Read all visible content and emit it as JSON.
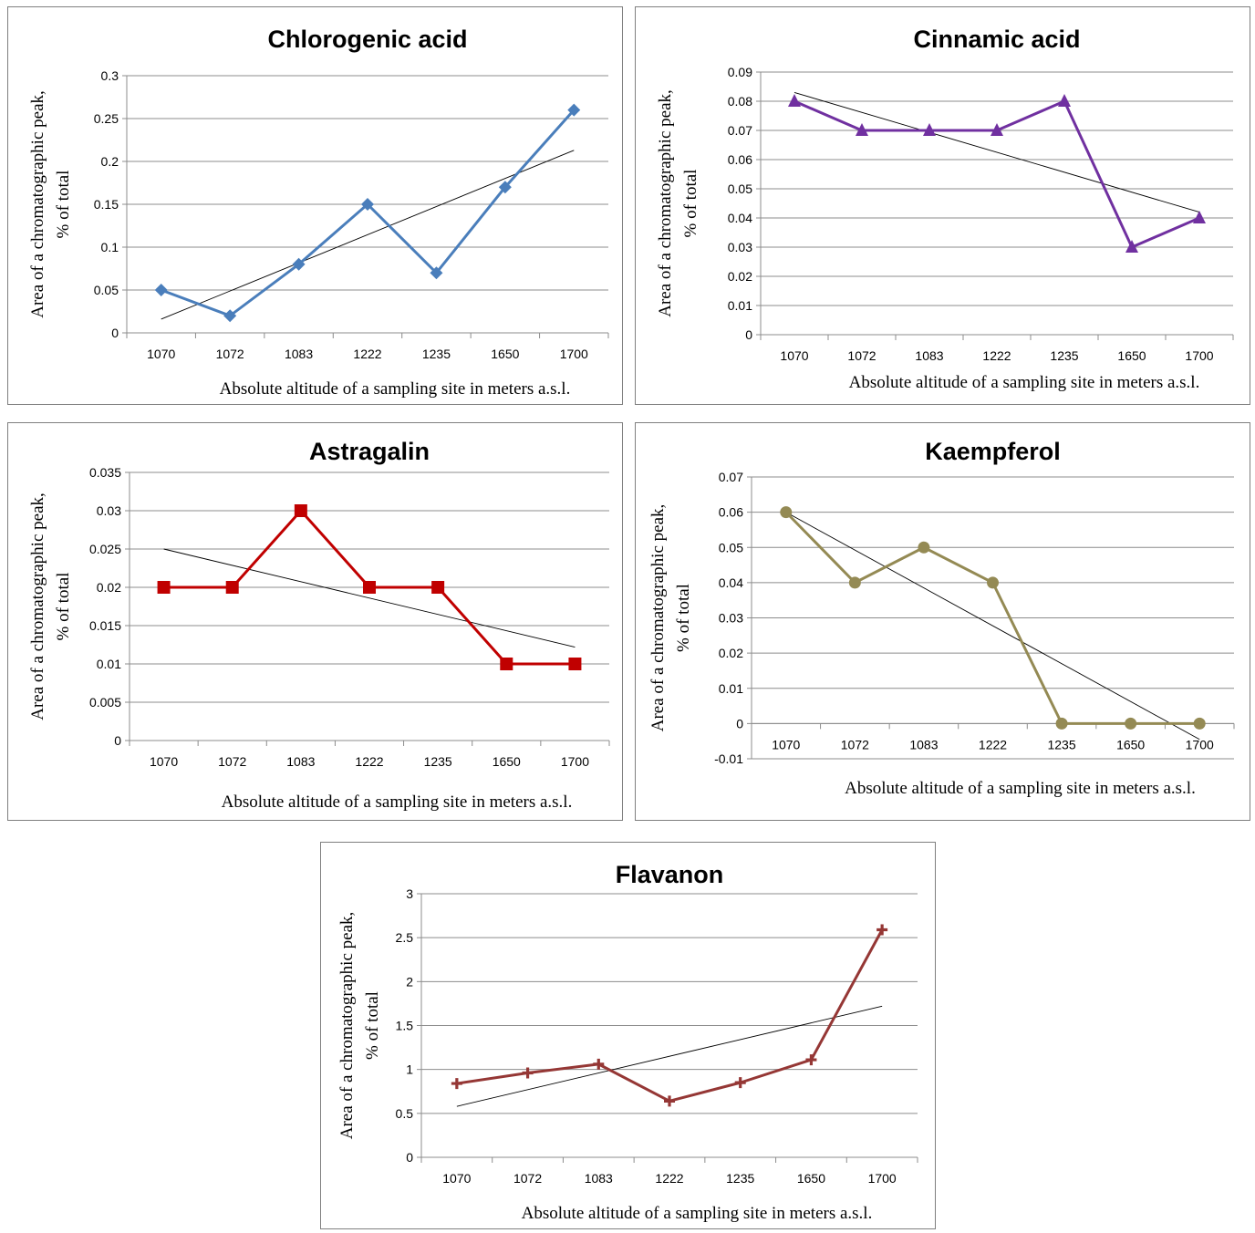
{
  "chart_data": [
    {
      "type": "line",
      "title": "Chlorogenic acid",
      "xlabel": "Absolute altitude of a sampling site in meters a.s.l.",
      "ylabel": [
        "Area of a chromatographic peak,",
        "% of total"
      ],
      "categories": [
        "1070",
        "1072",
        "1083",
        "1222",
        "1235",
        "1650",
        "1700"
      ],
      "series": [
        {
          "values": [
            0.05,
            0.02,
            0.08,
            0.15,
            0.07,
            0.17,
            0.26
          ],
          "color": "#4a7ebb",
          "marker": "diamond"
        }
      ],
      "trendline": [
        0.016,
        0.213
      ],
      "ylim": [
        0,
        0.3
      ],
      "yticks": [
        "0",
        "0.05",
        "0.1",
        "0.15",
        "0.2",
        "0.25",
        "0.3"
      ],
      "grid": true,
      "legend": "none"
    },
    {
      "type": "line",
      "title": "Cinnamic acid",
      "xlabel": "Absolute altitude of a sampling site in meters a.s.l.",
      "ylabel": [
        "Area of a chromatographic peak,",
        "% of total"
      ],
      "categories": [
        "1070",
        "1072",
        "1083",
        "1222",
        "1235",
        "1650",
        "1700"
      ],
      "series": [
        {
          "values": [
            0.08,
            0.07,
            0.07,
            0.07,
            0.08,
            0.03,
            0.04
          ],
          "color": "#7030a0",
          "marker": "triangle"
        }
      ],
      "trendline": [
        0.083,
        0.042
      ],
      "ylim": [
        0,
        0.09
      ],
      "yticks": [
        "0",
        "0.01",
        "0.02",
        "0.03",
        "0.04",
        "0.05",
        "0.06",
        "0.07",
        "0.08",
        "0.09"
      ],
      "grid": true,
      "legend": "none"
    },
    {
      "type": "line",
      "title": "Astragalin",
      "xlabel": "Absolute altitude of a sampling site in meters a.s.l.",
      "ylabel": [
        "Area of a chromatographic peak,",
        "% of total"
      ],
      "categories": [
        "1070",
        "1072",
        "1083",
        "1222",
        "1235",
        "1650",
        "1700"
      ],
      "series": [
        {
          "values": [
            0.02,
            0.02,
            0.03,
            0.02,
            0.02,
            0.01,
            0.01
          ],
          "color": "#c00000",
          "marker": "square"
        }
      ],
      "trendline": [
        0.025,
        0.0122
      ],
      "ylim": [
        0,
        0.035
      ],
      "yticks": [
        "0",
        "0.005",
        "0.01",
        "0.015",
        "0.02",
        "0.025",
        "0.03",
        "0.035"
      ],
      "grid": true,
      "legend": "none"
    },
    {
      "type": "line",
      "title": "Kaempferol",
      "xlabel": "Absolute altitude of a sampling site in meters a.s.l.",
      "ylabel": [
        "Area of a chromatographic peak,",
        "% of total"
      ],
      "categories": [
        "1070",
        "1072",
        "1083",
        "1222",
        "1235",
        "1650",
        "1700"
      ],
      "series": [
        {
          "values": [
            0.06,
            0.04,
            0.05,
            0.04,
            0,
            0,
            0
          ],
          "color": "#948a54",
          "marker": "circle"
        }
      ],
      "trendline": [
        0.06,
        -0.0045
      ],
      "ylim": [
        -0.01,
        0.07
      ],
      "yticks": [
        "-0.01",
        "0",
        "0.01",
        "0.02",
        "0.03",
        "0.04",
        "0.05",
        "0.06",
        "0.07"
      ],
      "xaxis_at": 0,
      "grid": true,
      "legend": "none"
    },
    {
      "type": "line",
      "title": "Flavanon",
      "xlabel": "Absolute altitude of a sampling site in meters a.s.l.",
      "ylabel": [
        "Area of a chromatographic peak,",
        "% of total"
      ],
      "categories": [
        "1070",
        "1072",
        "1083",
        "1222",
        "1235",
        "1650",
        "1700"
      ],
      "series": [
        {
          "values": [
            0.84,
            0.96,
            1.06,
            0.64,
            0.85,
            1.11,
            2.59
          ],
          "color": "#953735",
          "marker": "plus"
        }
      ],
      "trendline": [
        0.58,
        1.72
      ],
      "ylim": [
        0,
        3
      ],
      "yticks": [
        "0",
        "0.5",
        "1",
        "1.5",
        "2",
        "2.5",
        "3"
      ],
      "grid": true,
      "legend": "none"
    }
  ]
}
